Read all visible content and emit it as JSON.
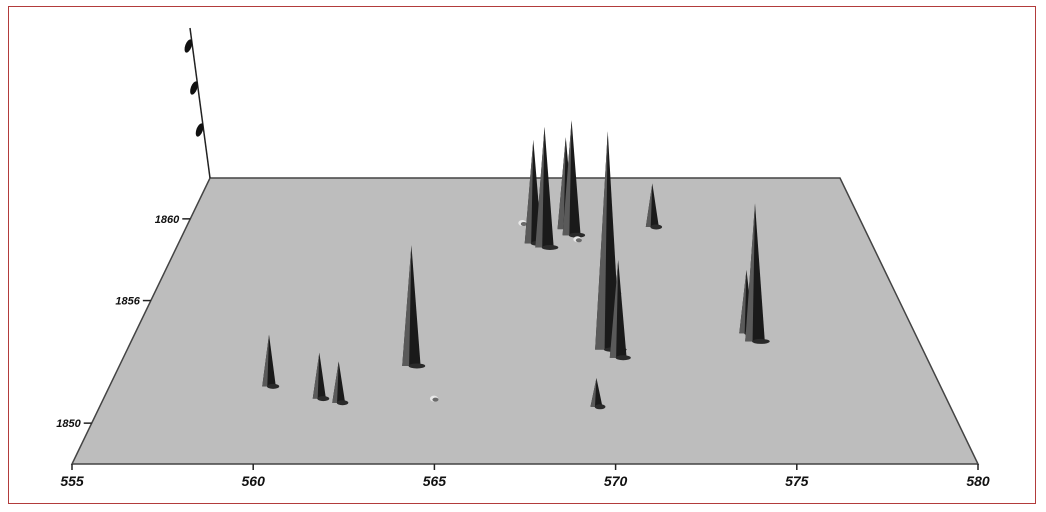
{
  "chart_data": {
    "type": "3d-surface",
    "title": "",
    "xlabel": "",
    "ylabel": "",
    "zlabel": "",
    "xlim": [
      555,
      580
    ],
    "ylim": [
      1848,
      1862
    ],
    "x_ticks": [
      555,
      560,
      565,
      570,
      575,
      580
    ],
    "x_tick_labels": [
      "555",
      "560",
      "565",
      "570",
      "575",
      "580"
    ],
    "y_ticks": [
      1860,
      1856,
      1850
    ],
    "y_tick_labels": [
      "1860",
      "1856",
      "1850"
    ],
    "z_ticks": [
      1,
      2,
      3
    ],
    "grid": false,
    "colors": {
      "plane": "#bdbdbd",
      "plane_edge": "#444444",
      "peak": "#1a1a1a",
      "frame": "#b23b3b"
    },
    "peaks": [
      {
        "x": 559.8,
        "y": 1851.8,
        "height": 0.45
      },
      {
        "x": 561.4,
        "y": 1851.2,
        "height": 0.4
      },
      {
        "x": 562.0,
        "y": 1851.0,
        "height": 0.36
      },
      {
        "x": 564.0,
        "y": 1852.8,
        "height": 1.05
      },
      {
        "x": 564.8,
        "y": 1851.2,
        "height": 0.03
      },
      {
        "x": 567.8,
        "y": 1858.8,
        "height": 0.9
      },
      {
        "x": 568.2,
        "y": 1858.6,
        "height": 1.05
      },
      {
        "x": 569.0,
        "y": 1859.5,
        "height": 0.8
      },
      {
        "x": 569.2,
        "y": 1859.2,
        "height": 1.0
      },
      {
        "x": 570.1,
        "y": 1853.6,
        "height": 1.9
      },
      {
        "x": 570.4,
        "y": 1853.2,
        "height": 0.85
      },
      {
        "x": 569.6,
        "y": 1850.8,
        "height": 0.25
      },
      {
        "x": 572.2,
        "y": 1859.6,
        "height": 0.38
      },
      {
        "x": 574.6,
        "y": 1854.4,
        "height": 0.55
      },
      {
        "x": 574.8,
        "y": 1854.0,
        "height": 1.2
      },
      {
        "x": 567.4,
        "y": 1859.8,
        "height": 0.03
      },
      {
        "x": 570.6,
        "y": 1856.4,
        "height": 0.03
      },
      {
        "x": 569.4,
        "y": 1859.0,
        "height": 0.03
      }
    ]
  }
}
